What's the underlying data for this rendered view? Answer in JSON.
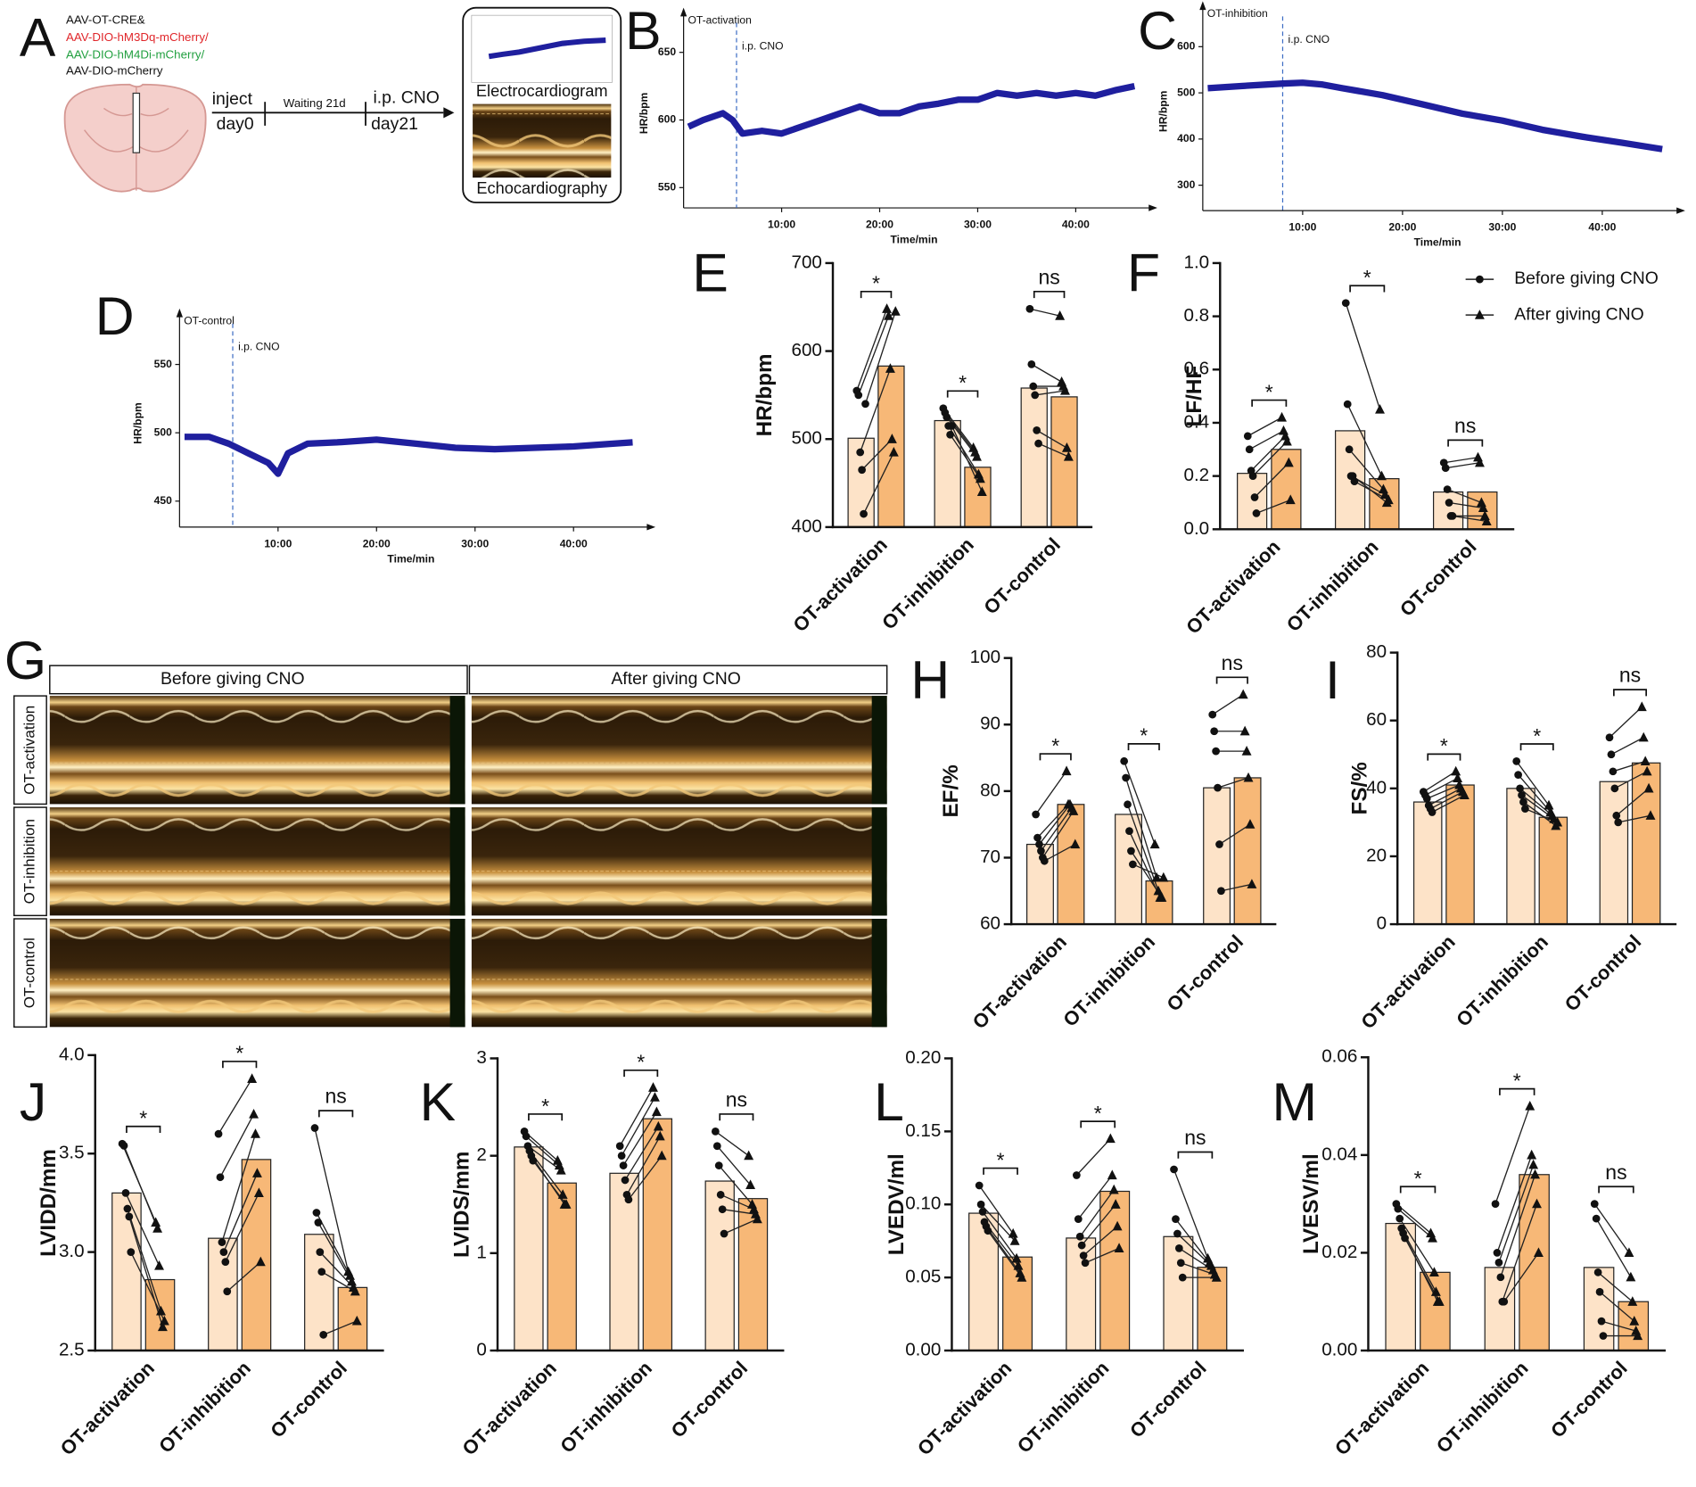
{
  "panel_a": {
    "label": "A",
    "vectors": [
      "AAV-OT-CRE&",
      "AAV-DIO-hM3Dq-mCherry/",
      "AAV-DIO-hM4Di-mCherry/",
      "AAV-DIO-mCherry"
    ],
    "timeline": {
      "start": "inject",
      "start_day": "day0",
      "wait": "Waiting 21d",
      "event": "i.p. CNO",
      "event_day": "day21"
    },
    "recordings": [
      "Electrocardiogram",
      "Echocardiography"
    ]
  },
  "panel_g": {
    "label": "G",
    "columns": [
      "Before giving CNO",
      "After giving CNO"
    ],
    "rows": [
      "OT-activation",
      "OT-inhibition",
      "OT-control"
    ]
  },
  "chart_data": [
    {
      "type": "line",
      "panel": "B",
      "title": "OT-activation",
      "annotation": "i.p. CNO",
      "event_x": 5.4,
      "xlabel": "Time/min",
      "ylabel": "HR/bpm",
      "color": "#1f1f9e",
      "x": [
        0.5,
        2,
        4,
        5,
        6,
        8,
        10,
        12,
        14,
        16,
        18,
        20,
        22,
        24,
        26,
        28,
        30,
        32,
        34,
        36,
        38,
        40,
        42,
        44,
        46
      ],
      "values": [
        595,
        600,
        605,
        600,
        590,
        592,
        590,
        595,
        600,
        605,
        610,
        605,
        605,
        610,
        612,
        615,
        615,
        620,
        618,
        620,
        618,
        620,
        618,
        622,
        625
      ],
      "xlim": [
        0,
        47
      ],
      "ylim": [
        535,
        675
      ],
      "xticks": [
        {
          "value": 10,
          "label": "10:00"
        },
        {
          "value": 20,
          "label": "20:00"
        },
        {
          "value": 30,
          "label": "30:00"
        },
        {
          "value": 40,
          "label": "40:00"
        }
      ],
      "yticks": [
        550,
        600,
        650
      ]
    },
    {
      "type": "line",
      "panel": "C",
      "title": "OT-inhibition",
      "annotation": "i.p. CNO",
      "event_x": 8,
      "xlabel": "Time/min",
      "ylabel": "HR/bpm",
      "color": "#1f1f9e",
      "x": [
        0.5,
        4,
        8,
        10,
        12,
        14,
        18,
        22,
        26,
        30,
        34,
        38,
        42,
        46
      ],
      "values": [
        510,
        515,
        520,
        522,
        518,
        510,
        495,
        475,
        455,
        440,
        420,
        405,
        392,
        378
      ],
      "xlim": [
        0,
        47
      ],
      "ylim": [
        245,
        675
      ],
      "xticks": [
        {
          "value": 10,
          "label": "10:00"
        },
        {
          "value": 20,
          "label": "20:00"
        },
        {
          "value": 30,
          "label": "30:00"
        },
        {
          "value": 40,
          "label": "40:00"
        }
      ],
      "yticks": [
        300,
        400,
        500,
        600
      ]
    },
    {
      "type": "line",
      "panel": "D",
      "title": "OT-control",
      "annotation": "i.p. CNO",
      "event_x": 5.4,
      "xlabel": "Time/min",
      "ylabel": "HR/bpm",
      "color": "#1f1f9e",
      "x": [
        0.5,
        3,
        5,
        7,
        9,
        10,
        11,
        13,
        16,
        20,
        24,
        28,
        32,
        36,
        40,
        44,
        46
      ],
      "values": [
        497,
        497,
        492,
        485,
        478,
        470,
        485,
        492,
        493,
        495,
        492,
        489,
        488,
        489,
        490,
        492,
        493
      ],
      "xlim": [
        0,
        47
      ],
      "ylim": [
        431,
        583
      ],
      "xticks": [
        {
          "value": 10,
          "label": "10:00"
        },
        {
          "value": 20,
          "label": "20:00"
        },
        {
          "value": 30,
          "label": "30:00"
        },
        {
          "value": 40,
          "label": "40:00"
        }
      ],
      "yticks": [
        450,
        500,
        550
      ]
    },
    {
      "type": "paired_bar",
      "panel": "E",
      "ylabel": "HR/bpm",
      "categories": [
        "OT-activation",
        "OT-inhibition",
        "OT-control"
      ],
      "annotations": [
        "*",
        "*",
        "ns"
      ],
      "ylim": [
        400,
        700
      ],
      "yticks": [
        400,
        500,
        600,
        700
      ],
      "series": [
        {
          "color": "#fde3c8",
          "values": [
            501,
            521,
            558
          ],
          "points": [
            [
              555,
              550,
              485,
              465,
              415,
              540
            ],
            [
              535,
              530,
              525,
              515,
              505,
              515
            ],
            [
              648,
              585,
              560,
              550,
              510,
              495
            ]
          ]
        },
        {
          "color": "#f7b877",
          "values": [
            583,
            468,
            548
          ],
          "points": [
            [
              648,
              640,
              580,
              500,
              485,
              645
            ],
            [
              490,
              485,
              480,
              460,
              455,
              440
            ],
            [
              640,
              565,
              560,
              555,
              490,
              480
            ]
          ]
        }
      ]
    },
    {
      "type": "paired_bar",
      "panel": "F",
      "ylabel": "LF/HF",
      "categories": [
        "OT-activation",
        "OT-inhibition",
        "OT-control"
      ],
      "annotations": [
        "*",
        "*",
        "ns"
      ],
      "legend": "upper right",
      "ylim": [
        0,
        1
      ],
      "yticks": [
        {
          "value": 0,
          "label": "0.0"
        },
        0.2,
        0.4,
        0.6,
        0.8,
        {
          "value": 1,
          "label": "1.0"
        }
      ],
      "series": [
        {
          "name": "Before giving CNO",
          "color": "#fde3c8",
          "values": [
            0.21,
            0.37,
            0.14
          ],
          "points": [
            [
              0.35,
              0.3,
              0.22,
              0.2,
              0.12,
              0.06
            ],
            [
              0.85,
              0.47,
              0.3,
              0.2,
              0.2,
              0.18
            ],
            [
              0.25,
              0.23,
              0.15,
              0.1,
              0.05,
              0.05
            ]
          ]
        },
        {
          "name": "After giving CNO",
          "color": "#f7b877",
          "values": [
            0.3,
            0.19,
            0.14
          ],
          "points": [
            [
              0.42,
              0.37,
              0.35,
              0.33,
              0.25,
              0.11
            ],
            [
              0.45,
              0.2,
              0.15,
              0.13,
              0.1,
              0.11
            ],
            [
              0.27,
              0.25,
              0.1,
              0.08,
              0.05,
              0.03
            ]
          ]
        }
      ]
    },
    {
      "type": "paired_bar",
      "panel": "H",
      "ylabel": "EF/%",
      "categories": [
        "OT-activation",
        "OT-inhibition",
        "OT-control"
      ],
      "annotations": [
        "*",
        "*",
        "ns"
      ],
      "ylim": [
        60,
        100
      ],
      "yticks": [
        60,
        70,
        80,
        90,
        100
      ],
      "series": [
        {
          "color": "#fde3c8",
          "values": [
            72,
            76.5,
            80.5
          ],
          "points": [
            [
              76.5,
              73,
              72,
              71,
              70,
              69.5
            ],
            [
              84.5,
              82,
              78,
              74,
              71,
              69
            ],
            [
              91.5,
              89,
              86,
              80.5,
              72,
              65
            ]
          ]
        },
        {
          "color": "#f7b877",
          "values": [
            78,
            66.5,
            82
          ],
          "points": [
            [
              83,
              78,
              78,
              77.5,
              77,
              72
            ],
            [
              72,
              67,
              65,
              64,
              64,
              67
            ],
            [
              94.5,
              89,
              86,
              82,
              75,
              66
            ]
          ]
        }
      ]
    },
    {
      "type": "paired_bar",
      "panel": "I",
      "ylabel": "FS/%",
      "categories": [
        "OT-activation",
        "OT-inhibition",
        "OT-control"
      ],
      "annotations": [
        "*",
        "*",
        "ns"
      ],
      "ylim": [
        0,
        80
      ],
      "yticks": [
        0,
        20,
        40,
        60,
        80
      ],
      "series": [
        {
          "color": "#fde3c8",
          "values": [
            36,
            40,
            42
          ],
          "points": [
            [
              39,
              38,
              37,
              35,
              34,
              33
            ],
            [
              48,
              44,
              40,
              38,
              36,
              34
            ],
            [
              55,
              50,
              45,
              40,
              32,
              30
            ]
          ]
        },
        {
          "color": "#f7b877",
          "values": [
            41,
            31.5,
            47.5
          ],
          "points": [
            [
              45,
              43,
              41,
              40,
              39,
              38
            ],
            [
              35,
              33,
              32,
              31,
              29,
              30
            ],
            [
              64,
              55,
              48,
              45,
              40,
              32
            ]
          ]
        }
      ]
    },
    {
      "type": "paired_bar",
      "panel": "J",
      "ylabel": "LVIDD/mm",
      "categories": [
        "OT-activation",
        "OT-inhibition",
        "OT-control"
      ],
      "annotations": [
        "*",
        "*",
        "ns"
      ],
      "ylim": [
        2.5,
        4
      ],
      "yticks": [
        2.5,
        {
          "value": 3,
          "label": "3.0"
        },
        3.5,
        {
          "value": 4,
          "label": "4.0"
        }
      ],
      "series": [
        {
          "color": "#fde3c8",
          "values": [
            3.3,
            3.07,
            3.09
          ],
          "points": [
            [
              3.55,
              3.54,
              3.3,
              3.22,
              3.18,
              3.0
            ],
            [
              3.6,
              3.38,
              3.05,
              3.0,
              2.95,
              2.8
            ],
            [
              3.63,
              3.2,
              3.15,
              3.0,
              2.9,
              2.58
            ]
          ]
        },
        {
          "color": "#f7b877",
          "values": [
            2.86,
            3.47,
            2.82
          ],
          "points": [
            [
              3.15,
              3.12,
              2.93,
              2.7,
              2.62,
              2.65
            ],
            [
              3.88,
              3.7,
              3.6,
              3.4,
              3.3,
              2.95
            ],
            [
              2.9,
              2.88,
              2.85,
              2.82,
              2.8,
              2.65
            ]
          ]
        }
      ]
    },
    {
      "type": "paired_bar",
      "panel": "K",
      "ylabel": "LVIDS/mm",
      "categories": [
        "OT-activation",
        "OT-inhibition",
        "OT-control"
      ],
      "annotations": [
        "*",
        "*",
        "ns"
      ],
      "ylim": [
        0,
        3
      ],
      "yticks": [
        0,
        1,
        2,
        3
      ],
      "series": [
        {
          "color": "#fde3c8",
          "values": [
            2.09,
            1.82,
            1.74
          ],
          "points": [
            [
              2.25,
              2.2,
              2.1,
              2.05,
              2.0,
              1.95
            ],
            [
              2.1,
              2.0,
              1.9,
              1.75,
              1.6,
              1.55
            ],
            [
              2.25,
              2.1,
              1.9,
              1.6,
              1.45,
              1.2
            ]
          ]
        },
        {
          "color": "#f7b877",
          "values": [
            1.72,
            2.38,
            1.56
          ],
          "points": [
            [
              1.95,
              1.9,
              1.85,
              1.6,
              1.5,
              1.5
            ],
            [
              2.7,
              2.6,
              2.45,
              2.3,
              2.2,
              2.0
            ],
            [
              2.0,
              1.7,
              1.5,
              1.45,
              1.4,
              1.35
            ]
          ]
        }
      ]
    },
    {
      "type": "paired_bar",
      "panel": "L",
      "ylabel": "LVEDV/ml",
      "categories": [
        "OT-activation",
        "OT-inhibition",
        "OT-control"
      ],
      "annotations": [
        "*",
        "*",
        "ns"
      ],
      "ylim": [
        0,
        0.2
      ],
      "yticks": [
        {
          "value": 0,
          "label": "0.00"
        },
        {
          "value": 0.05,
          "label": "0.05"
        },
        {
          "value": 0.1,
          "label": "0.10"
        },
        {
          "value": 0.15,
          "label": "0.15"
        },
        {
          "value": 0.2,
          "label": "0.20"
        }
      ],
      "series": [
        {
          "color": "#fde3c8",
          "values": [
            0.094,
            0.077,
            0.078
          ],
          "points": [
            [
              0.113,
              0.1,
              0.095,
              0.088,
              0.085,
              0.082
            ],
            [
              0.12,
              0.09,
              0.078,
              0.072,
              0.065,
              0.06
            ],
            [
              0.124,
              0.09,
              0.08,
              0.07,
              0.06,
              0.05
            ]
          ]
        },
        {
          "color": "#f7b877",
          "values": [
            0.064,
            0.109,
            0.057
          ],
          "points": [
            [
              0.08,
              0.075,
              0.063,
              0.058,
              0.053,
              0.05
            ],
            [
              0.145,
              0.12,
              0.11,
              0.1,
              0.085,
              0.07
            ],
            [
              0.063,
              0.06,
              0.058,
              0.055,
              0.052,
              0.05
            ]
          ]
        }
      ]
    },
    {
      "type": "paired_bar",
      "panel": "M",
      "ylabel": "LVESV/ml",
      "categories": [
        "OT-activation",
        "OT-inhibition",
        "OT-control"
      ],
      "annotations": [
        "*",
        "*",
        "ns"
      ],
      "ylim": [
        0,
        0.06
      ],
      "yticks": [
        {
          "value": 0,
          "label": "0.00"
        },
        {
          "value": 0.02,
          "label": "0.02"
        },
        {
          "value": 0.04,
          "label": "0.04"
        },
        {
          "value": 0.06,
          "label": "0.06"
        }
      ],
      "series": [
        {
          "color": "#fde3c8",
          "values": [
            0.026,
            0.017,
            0.017
          ],
          "points": [
            [
              0.03,
              0.029,
              0.027,
              0.025,
              0.024,
              0.023
            ],
            [
              0.03,
              0.02,
              0.018,
              0.015,
              0.01,
              0.01
            ],
            [
              0.03,
              0.027,
              0.016,
              0.012,
              0.006,
              0.003
            ]
          ]
        },
        {
          "color": "#f7b877",
          "values": [
            0.016,
            0.036,
            0.01
          ],
          "points": [
            [
              0.024,
              0.023,
              0.016,
              0.012,
              0.01,
              0.01
            ],
            [
              0.05,
              0.04,
              0.038,
              0.036,
              0.03,
              0.02
            ],
            [
              0.02,
              0.015,
              0.01,
              0.006,
              0.004,
              0.003
            ]
          ]
        }
      ]
    }
  ]
}
